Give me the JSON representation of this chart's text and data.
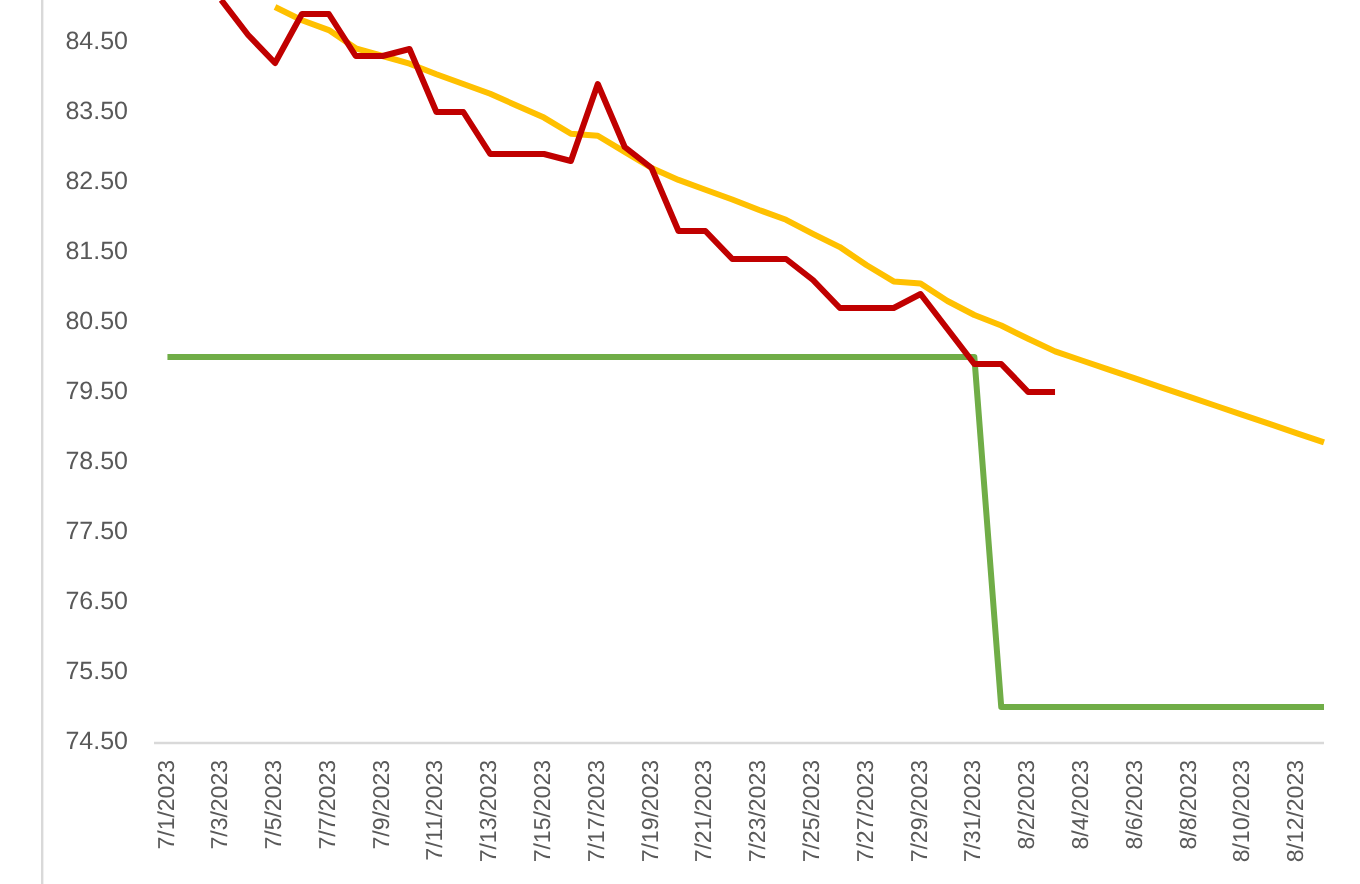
{
  "chart_data": {
    "type": "line",
    "x": [
      "2023-07-01",
      "2023-07-02",
      "2023-07-03",
      "2023-07-04",
      "2023-07-05",
      "2023-07-06",
      "2023-07-07",
      "2023-07-08",
      "2023-07-09",
      "2023-07-10",
      "2023-07-11",
      "2023-07-12",
      "2023-07-13",
      "2023-07-14",
      "2023-07-15",
      "2023-07-16",
      "2023-07-17",
      "2023-07-18",
      "2023-07-19",
      "2023-07-20",
      "2023-07-21",
      "2023-07-22",
      "2023-07-23",
      "2023-07-24",
      "2023-07-25",
      "2023-07-26",
      "2023-07-27",
      "2023-07-28",
      "2023-07-29",
      "2023-07-30",
      "2023-07-31",
      "2023-08-01",
      "2023-08-02",
      "2023-08-03",
      "2023-08-04",
      "2023-08-05",
      "2023-08-06",
      "2023-08-07",
      "2023-08-08",
      "2023-08-09",
      "2023-08-10",
      "2023-08-11",
      "2023-08-12",
      "2023-08-13"
    ],
    "series": [
      {
        "color": "#70ad47",
        "values": [
          80.0,
          80.0,
          80.0,
          80.0,
          80.0,
          80.0,
          80.0,
          80.0,
          80.0,
          80.0,
          80.0,
          80.0,
          80.0,
          80.0,
          80.0,
          80.0,
          80.0,
          80.0,
          80.0,
          80.0,
          80.0,
          80.0,
          80.0,
          80.0,
          80.0,
          80.0,
          80.0,
          80.0,
          80.0,
          80.0,
          80.0,
          75.0,
          75.0,
          75.0,
          75.0,
          75.0,
          75.0,
          75.0,
          75.0,
          75.0,
          75.0,
          75.0,
          75.0,
          75.0
        ]
      },
      {
        "color": "#ffc000",
        "values": [
          null,
          null,
          null,
          null,
          85.0,
          84.81,
          84.67,
          84.41,
          84.3,
          84.19,
          84.04,
          83.9,
          83.76,
          83.59,
          83.42,
          83.19,
          83.16,
          82.93,
          82.7,
          82.53,
          82.39,
          82.25,
          82.1,
          81.96,
          81.76,
          81.57,
          81.31,
          81.08,
          81.05,
          80.8,
          80.6,
          80.45,
          80.26,
          80.08,
          79.95,
          79.82,
          79.69,
          79.56,
          79.43,
          79.3,
          79.17,
          79.04,
          78.91,
          78.78
        ]
      },
      {
        "color": "#c00000",
        "values": [
          null,
          null,
          85.1,
          84.6,
          84.2,
          84.9,
          84.9,
          84.3,
          84.3,
          84.4,
          83.5,
          83.5,
          82.9,
          82.9,
          82.9,
          82.8,
          83.9,
          83.0,
          82.7,
          81.8,
          81.8,
          81.4,
          81.4,
          81.4,
          81.1,
          80.7,
          80.7,
          80.7,
          80.9,
          80.4,
          79.9,
          79.9,
          79.5,
          79.5,
          null,
          null,
          null,
          null,
          null,
          null,
          null,
          null,
          null,
          null
        ]
      }
    ],
    "xlim": [
      "2023-06-30T12:00",
      "2023-08-13"
    ],
    "xticks": [
      {
        "value": "2023-07-01",
        "label": "7/1/2023"
      },
      {
        "value": "2023-07-03",
        "label": "7/3/2023"
      },
      {
        "value": "2023-07-05",
        "label": "7/5/2023"
      },
      {
        "value": "2023-07-07",
        "label": "7/7/2023"
      },
      {
        "value": "2023-07-09",
        "label": "7/9/2023"
      },
      {
        "value": "2023-07-11",
        "label": "7/11/2023"
      },
      {
        "value": "2023-07-13",
        "label": "7/13/2023"
      },
      {
        "value": "2023-07-15",
        "label": "7/15/2023"
      },
      {
        "value": "2023-07-17",
        "label": "7/17/2023"
      },
      {
        "value": "2023-07-19",
        "label": "7/19/2023"
      },
      {
        "value": "2023-07-21",
        "label": "7/21/2023"
      },
      {
        "value": "2023-07-23",
        "label": "7/23/2023"
      },
      {
        "value": "2023-07-25",
        "label": "7/25/2023"
      },
      {
        "value": "2023-07-27",
        "label": "7/27/2023"
      },
      {
        "value": "2023-07-29",
        "label": "7/29/2023"
      },
      {
        "value": "2023-07-31",
        "label": "7/31/2023"
      },
      {
        "value": "2023-08-02",
        "label": "8/2/2023"
      },
      {
        "value": "2023-08-04",
        "label": "8/4/2023"
      },
      {
        "value": "2023-08-06",
        "label": "8/6/2023"
      },
      {
        "value": "2023-08-08",
        "label": "8/8/2023"
      },
      {
        "value": "2023-08-10",
        "label": "8/10/2023"
      },
      {
        "value": "2023-08-12",
        "label": "8/12/2023"
      }
    ],
    "ylim": [
      74.5,
      85.1
    ],
    "yticks": [
      {
        "value": 74.5,
        "label": "74.50"
      },
      {
        "value": 75.5,
        "label": "75.50"
      },
      {
        "value": 76.5,
        "label": "76.50"
      },
      {
        "value": 77.5,
        "label": "77.50"
      },
      {
        "value": 78.5,
        "label": "78.50"
      },
      {
        "value": 79.5,
        "label": "79.50"
      },
      {
        "value": 80.5,
        "label": "80.50"
      },
      {
        "value": 81.5,
        "label": "81.50"
      },
      {
        "value": 82.5,
        "label": "82.50"
      },
      {
        "value": 83.5,
        "label": "83.50"
      },
      {
        "value": 84.5,
        "label": "84.50"
      }
    ]
  }
}
